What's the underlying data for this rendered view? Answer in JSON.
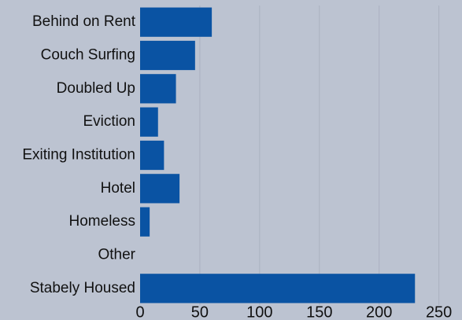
{
  "chart_data": {
    "type": "bar",
    "orientation": "horizontal",
    "categories": [
      "Behind on Rent",
      "Couch Surfing",
      "Doubled Up",
      "Eviction",
      "Exiting Institution",
      "Hotel",
      "Homeless",
      "Other",
      "Stabely Housed"
    ],
    "values": [
      60,
      46,
      30,
      15,
      20,
      33,
      8,
      0,
      230
    ],
    "color": "#0a53a3",
    "xlim": [
      0,
      270
    ],
    "xticks": [
      0,
      50,
      100,
      150,
      200,
      250
    ],
    "grid": true
  }
}
